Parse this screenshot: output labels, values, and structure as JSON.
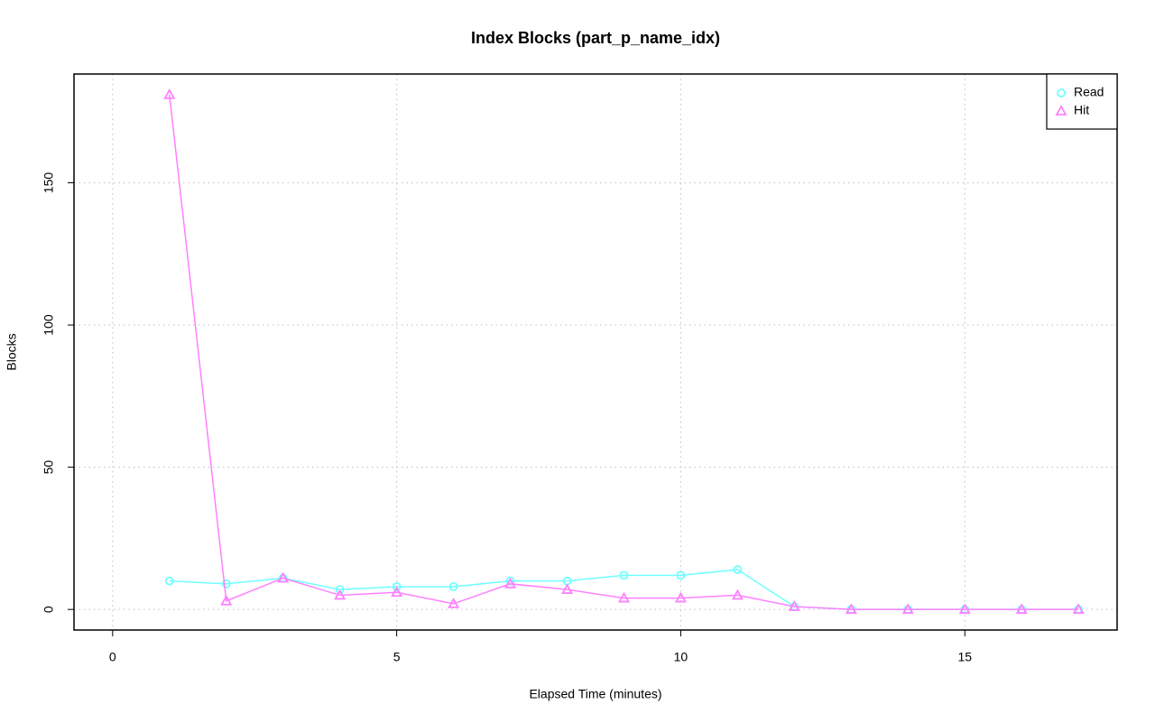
{
  "chart_data": {
    "type": "line",
    "title": "Index Blocks (part_p_name_idx)",
    "x_label": "Elapsed Time (minutes)",
    "y_label": "Blocks",
    "x": [
      1,
      2,
      3,
      4,
      5,
      6,
      7,
      8,
      9,
      10,
      11,
      12,
      13,
      14,
      15,
      16,
      17
    ],
    "series": [
      {
        "name": "Read",
        "color": "#70ffff",
        "marker": "circle",
        "values": [
          10,
          9,
          11,
          7,
          8,
          8,
          10,
          10,
          12,
          12,
          14,
          1,
          0,
          0,
          0,
          0,
          0
        ]
      },
      {
        "name": "Hit",
        "color": "#ff80ff",
        "marker": "triangle",
        "values": [
          181,
          3,
          11,
          5,
          6,
          2,
          9,
          7,
          4,
          4,
          5,
          1,
          0,
          0,
          0,
          0,
          0
        ]
      }
    ],
    "xlim": [
      -0.68,
      17.68
    ],
    "ylim": [
      -7.24,
      188.24
    ],
    "xticks": [
      0,
      5,
      10,
      15
    ],
    "yticks": [
      0,
      50,
      100,
      150
    ],
    "grid": true,
    "legend": "top-right"
  }
}
